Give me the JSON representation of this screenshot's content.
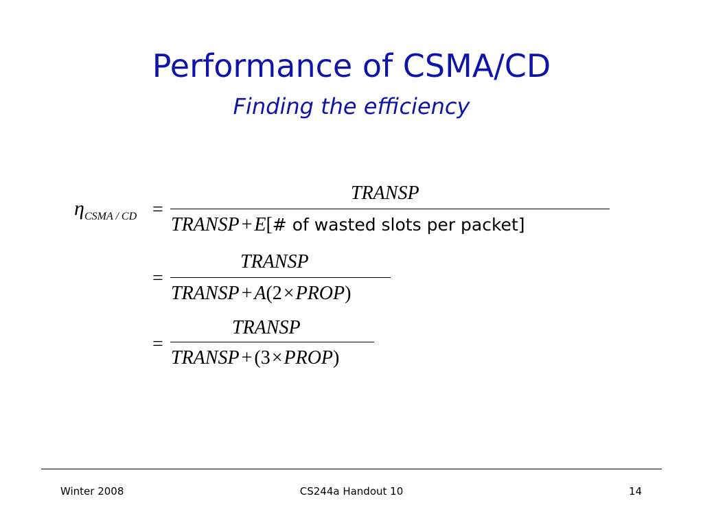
{
  "slide": {
    "title": "Performance of CSMA/CD",
    "subtitle": "Finding the efficiency"
  },
  "equation": {
    "lhs_symbol": "η",
    "lhs_subscript": "CSMA / CD",
    "equals": "=",
    "line1": {
      "numerator": "TRANSP",
      "den_a": "TRANSP",
      "den_plus": "+",
      "den_e": "E",
      "den_bracket_open": "[",
      "den_text": "# of wasted slots per packet]"
    },
    "line2": {
      "numerator": "TRANSP",
      "den_a": "TRANSP",
      "den_plus": "+",
      "den_b": "A",
      "den_paren_open": "(",
      "den_two": "2",
      "den_times": "×",
      "den_prop": "PROP",
      "den_paren_close": ")"
    },
    "line3": {
      "numerator": "TRANSP",
      "den_a": "TRANSP",
      "den_plus": "+",
      "den_paren_open": "(",
      "den_three": "3",
      "den_times": "×",
      "den_prop": "PROP",
      "den_paren_close": ")"
    }
  },
  "footer": {
    "left": "Winter 2008",
    "center": "CS244a Handout 10",
    "right": "14"
  },
  "colors": {
    "title": "#0f14a8",
    "text": "#000000",
    "background": "#ffffff"
  }
}
